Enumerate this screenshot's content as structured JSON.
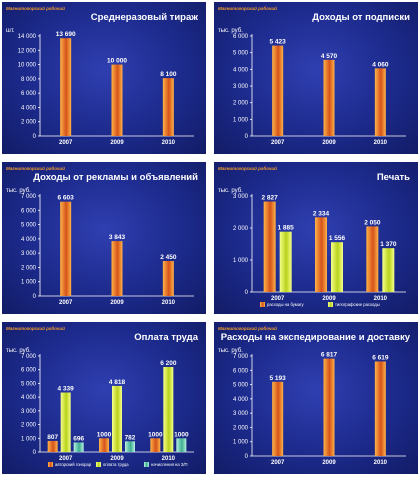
{
  "brand": "Магнитогорский рабочий",
  "colors": {
    "orange_light": "#ffb347",
    "orange_dark": "#d5531b",
    "yellow_light": "#f6ff8a",
    "yellow_dark": "#b9d21b",
    "teal_light": "#b6f0e0",
    "teal_dark": "#3fae91"
  },
  "chart_data": [
    {
      "type": "bar",
      "title": "Среднеразовый тираж",
      "ylabel": "шт.",
      "ylim": [
        0,
        14000
      ],
      "yticks": [
        0,
        2000,
        4000,
        6000,
        8000,
        10000,
        12000,
        14000
      ],
      "ytick_labels": [
        "0",
        "2 000",
        "4 000",
        "6 000",
        "8 000",
        "10 000",
        "12 000",
        "14 000"
      ],
      "categories": [
        "2007",
        "2009",
        "2010"
      ],
      "series": [
        {
          "values": [
            13690,
            10000,
            8100
          ],
          "labels": [
            "13 690",
            "10 000",
            "8 100"
          ],
          "color": "orange"
        }
      ]
    },
    {
      "type": "bar",
      "title": "Доходы от подписки",
      "ylabel": "тыс. руб.",
      "ylim": [
        0,
        6000
      ],
      "yticks": [
        0,
        1000,
        2000,
        3000,
        4000,
        5000,
        6000
      ],
      "ytick_labels": [
        "0",
        "1 000",
        "2 000",
        "3 000",
        "4 000",
        "5 000",
        "6 000"
      ],
      "categories": [
        "2007",
        "2009",
        "2010"
      ],
      "series": [
        {
          "values": [
            5423,
            4570,
            4060
          ],
          "labels": [
            "5 423",
            "4 570",
            "4 060"
          ],
          "color": "orange"
        }
      ]
    },
    {
      "type": "bar",
      "title": "Доходы от рекламы и объявлений",
      "ylabel": "тыс. руб.",
      "ylim": [
        0,
        7000
      ],
      "yticks": [
        0,
        1000,
        2000,
        3000,
        4000,
        5000,
        6000,
        7000
      ],
      "ytick_labels": [
        "0",
        "1 000",
        "2 000",
        "3 000",
        "4 000",
        "5 000",
        "6 000",
        "7 000"
      ],
      "categories": [
        "2007",
        "2009",
        "2010"
      ],
      "series": [
        {
          "values": [
            6603,
            3843,
            2450
          ],
          "labels": [
            "6 603",
            "3 843",
            "2 450"
          ],
          "color": "orange"
        }
      ]
    },
    {
      "type": "bar",
      "title": "Печать",
      "ylabel": "тыс. руб.",
      "ylim": [
        0,
        3000
      ],
      "yticks": [
        0,
        1000,
        2000,
        3000
      ],
      "ytick_labels": [
        "0",
        "1 000",
        "2 000",
        "3 000"
      ],
      "categories": [
        "2007",
        "2009",
        "2010"
      ],
      "legend": "bottom",
      "series": [
        {
          "name": "расходы на бумагу",
          "values": [
            2827,
            2334,
            2050
          ],
          "labels": [
            "2 827",
            "2 334",
            "2 050"
          ],
          "color": "orange"
        },
        {
          "name": "типографские расходы",
          "values": [
            1885,
            1556,
            1370
          ],
          "labels": [
            "1 885",
            "1 556",
            "1 370"
          ],
          "color": "yellow"
        }
      ]
    },
    {
      "type": "bar",
      "title": "Оплата труда",
      "ylabel": "тыс. руб.",
      "ylim": [
        0,
        7000
      ],
      "yticks": [
        0,
        1000,
        2000,
        3000,
        4000,
        5000,
        6000,
        7000
      ],
      "ytick_labels": [
        "0",
        "1 000",
        "2 000",
        "3 000",
        "4 000",
        "5 000",
        "6 000",
        "7 000"
      ],
      "categories": [
        "2007",
        "2009",
        "2010"
      ],
      "legend": "bottom",
      "series": [
        {
          "name": "авторский гонорар",
          "values": [
            807,
            1000,
            1000
          ],
          "labels": [
            "807",
            "1000",
            "1000"
          ],
          "color": "orange"
        },
        {
          "name": "оплата труда",
          "values": [
            4339,
            4818,
            6200
          ],
          "labels": [
            "4 339",
            "4 818",
            "6 200"
          ],
          "color": "yellow"
        },
        {
          "name": "начисления на З/П",
          "values": [
            696,
            782,
            1000
          ],
          "labels": [
            "696",
            "782",
            "1000"
          ],
          "color": "teal"
        }
      ]
    },
    {
      "type": "bar",
      "title": "Расходы на экспедирование и доставку",
      "ylabel": "тыс. руб.",
      "ylim": [
        0,
        7000
      ],
      "yticks": [
        0,
        1000,
        2000,
        3000,
        4000,
        5000,
        6000,
        7000
      ],
      "ytick_labels": [
        "0",
        "1 000",
        "2 000",
        "3 000",
        "4 000",
        "5 000",
        "6 000",
        "7 000"
      ],
      "categories": [
        "2007",
        "2009",
        "2010"
      ],
      "series": [
        {
          "values": [
            5193,
            6817,
            6619
          ],
          "labels": [
            "5 193",
            "6 817",
            "6 619"
          ],
          "color": "orange"
        }
      ]
    }
  ]
}
